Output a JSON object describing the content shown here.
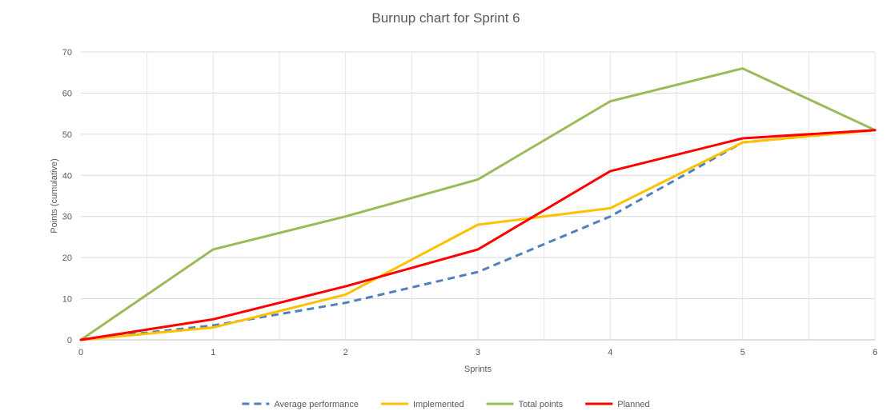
{
  "chart_data": {
    "type": "line",
    "title": "Burnup chart for Sprint 6",
    "xlabel": "Sprints",
    "ylabel": "Points (cumulative)",
    "x": [
      0,
      1,
      2,
      3,
      4,
      5,
      6
    ],
    "xlim": [
      0,
      6
    ],
    "ylim": [
      0,
      70
    ],
    "x_ticks": [
      0,
      1,
      2,
      3,
      4,
      5,
      6
    ],
    "y_ticks": [
      0,
      10,
      20,
      30,
      40,
      50,
      60,
      70
    ],
    "vertical_gridlines_per_unit": 2,
    "grid": true,
    "legend_position": "bottom",
    "series": [
      {
        "name": "Average performance",
        "style": "dashed",
        "color": "#4f81bd",
        "x": [
          0,
          1,
          2,
          3,
          4,
          5,
          6
        ],
        "values": [
          0,
          3.5,
          9,
          16.5,
          30,
          48,
          51
        ]
      },
      {
        "name": "Implemented",
        "style": "solid",
        "color": "#ffc000",
        "x": [
          0,
          1,
          2,
          3,
          4,
          5,
          6
        ],
        "values": [
          0,
          3,
          11,
          28,
          32,
          48,
          51
        ]
      },
      {
        "name": "Total points",
        "style": "solid",
        "color": "#9bbb59",
        "x": [
          0,
          1,
          2,
          3,
          4,
          5,
          6
        ],
        "values": [
          0,
          22,
          30,
          39,
          58,
          66,
          51
        ]
      },
      {
        "name": "Planned",
        "style": "solid",
        "color": "#ff0000",
        "x": [
          0,
          1,
          2,
          3,
          4,
          5,
          6
        ],
        "values": [
          0,
          5,
          13,
          22,
          41,
          49,
          51
        ]
      }
    ]
  }
}
